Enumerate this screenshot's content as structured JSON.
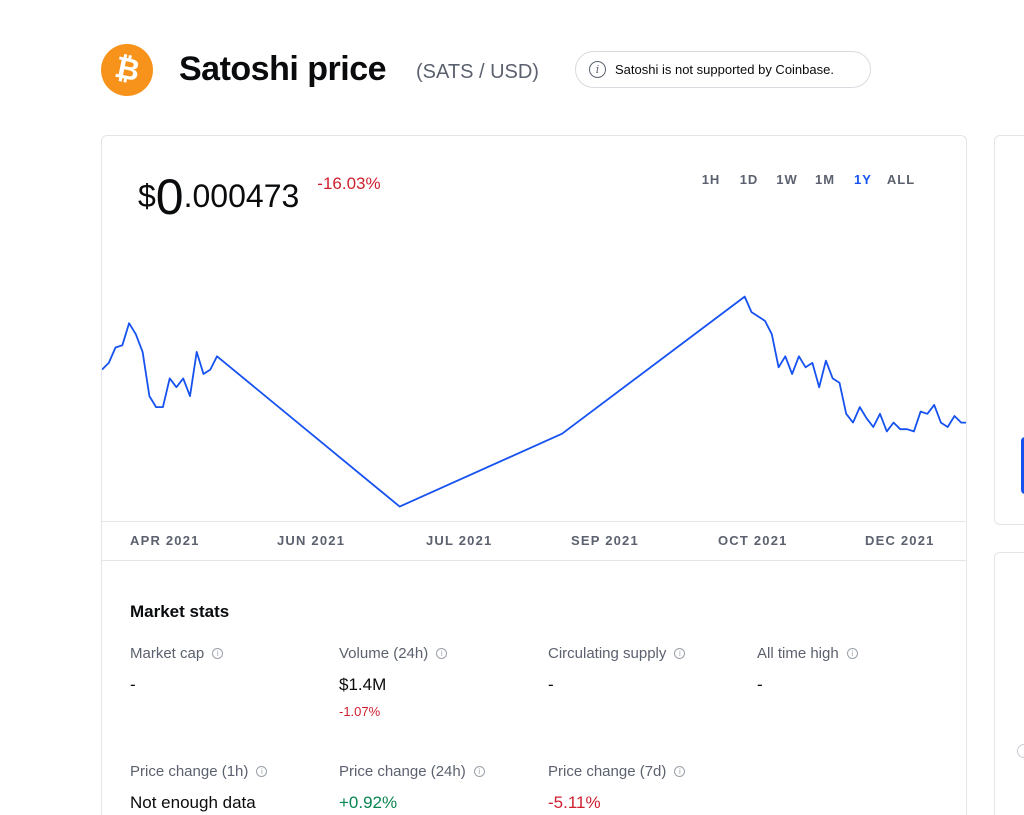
{
  "header": {
    "coin_logo_icon": "bitcoin-icon",
    "coin_logo_glyph": "₿",
    "title": "Satoshi price",
    "pair": "(SATS / USD)",
    "support_notice": "Satoshi is not supported by Coinbase.",
    "info_glyph": "i"
  },
  "price": {
    "currency": "$",
    "integer": "0",
    "fraction": ".000473",
    "change": "-16.03%"
  },
  "range_tabs": [
    {
      "label": "1H",
      "active": false
    },
    {
      "label": "1D",
      "active": false
    },
    {
      "label": "1W",
      "active": false
    },
    {
      "label": "1M",
      "active": false
    },
    {
      "label": "1Y",
      "active": true
    },
    {
      "label": "ALL",
      "active": false
    }
  ],
  "chart_data": {
    "type": "line",
    "line_color": "#1652f0",
    "x_ticks": [
      "APR 2021",
      "JUN 2021",
      "JUL 2021",
      "SEP 2021",
      "OCT 2021",
      "DEC 2021"
    ],
    "series": [
      {
        "values": [
          [
            0,
            0.64
          ],
          [
            0.5,
            0.67
          ],
          [
            1,
            0.74
          ],
          [
            1.5,
            0.75
          ],
          [
            2,
            0.85
          ],
          [
            2.5,
            0.8
          ],
          [
            3,
            0.72
          ],
          [
            3.5,
            0.52
          ],
          [
            4,
            0.47
          ],
          [
            4.5,
            0.47
          ],
          [
            5,
            0.6
          ],
          [
            5.5,
            0.56
          ],
          [
            6,
            0.6
          ],
          [
            6.5,
            0.52
          ],
          [
            7,
            0.72
          ],
          [
            7.5,
            0.62
          ],
          [
            8,
            0.64
          ],
          [
            8.5,
            0.7
          ],
          [
            22,
            0.02
          ],
          [
            34,
            0.35
          ],
          [
            47.5,
            0.97
          ],
          [
            48,
            0.9
          ],
          [
            48.5,
            0.88
          ],
          [
            49,
            0.86
          ],
          [
            49.5,
            0.8
          ],
          [
            50,
            0.65
          ],
          [
            50.5,
            0.7
          ],
          [
            51,
            0.62
          ],
          [
            51.5,
            0.7
          ],
          [
            52,
            0.65
          ],
          [
            52.5,
            0.67
          ],
          [
            53,
            0.56
          ],
          [
            53.5,
            0.68
          ],
          [
            54,
            0.6
          ],
          [
            54.5,
            0.58
          ],
          [
            55,
            0.44
          ],
          [
            55.5,
            0.4
          ],
          [
            56,
            0.47
          ],
          [
            56.5,
            0.42
          ],
          [
            57,
            0.38
          ],
          [
            57.5,
            0.44
          ],
          [
            58,
            0.36
          ],
          [
            58.5,
            0.4
          ],
          [
            59,
            0.37
          ],
          [
            59.5,
            0.37
          ],
          [
            60,
            0.36
          ],
          [
            60.5,
            0.45
          ],
          [
            61,
            0.44
          ],
          [
            61.5,
            0.48
          ],
          [
            62,
            0.4
          ],
          [
            62.5,
            0.38
          ],
          [
            63,
            0.43
          ],
          [
            63.5,
            0.4
          ],
          [
            64,
            0.4
          ]
        ]
      }
    ]
  },
  "market_stats": {
    "title": "Market stats",
    "items": [
      {
        "label": "Market cap",
        "value": "-",
        "sub": "",
        "value_class": "",
        "sub_class": ""
      },
      {
        "label": "Volume (24h)",
        "value": "$1.4M",
        "sub": "-1.07%",
        "value_class": "",
        "sub_class": "neg"
      },
      {
        "label": "Circulating supply",
        "value": "-",
        "sub": "",
        "value_class": "",
        "sub_class": ""
      },
      {
        "label": "All time high",
        "value": "-",
        "sub": "",
        "value_class": "",
        "sub_class": ""
      },
      {
        "label": "Price change (1h)",
        "value": "Not enough data",
        "sub": "",
        "value_class": "",
        "sub_class": ""
      },
      {
        "label": "Price change (24h)",
        "value": "+0.92%",
        "sub": "",
        "value_class": "pos",
        "sub_class": ""
      },
      {
        "label": "Price change (7d)",
        "value": "-5.11%",
        "sub": "",
        "value_class": "neg",
        "sub_class": ""
      }
    ]
  },
  "colors": {
    "accent": "#1652f0",
    "negative": "#cf202f",
    "positive": "#098551",
    "brand_coin": "#f7931a"
  }
}
